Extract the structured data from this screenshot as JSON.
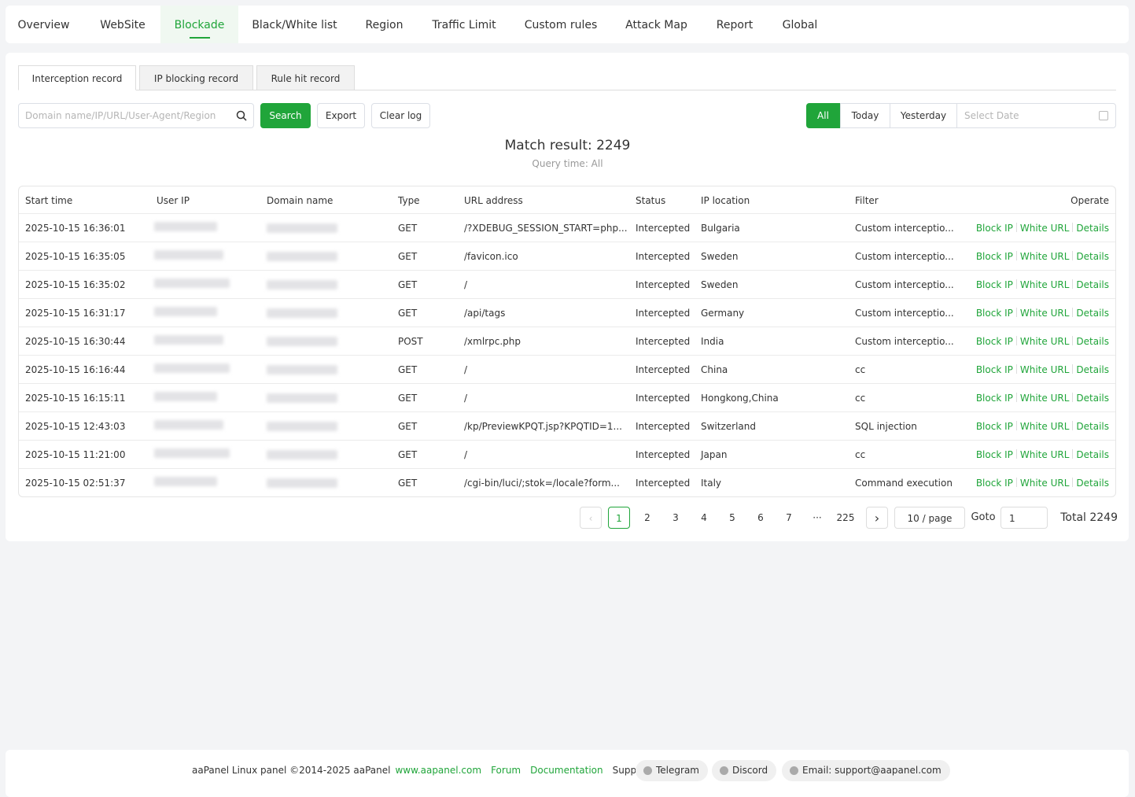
{
  "nav": [
    "Overview",
    "WebSite",
    "Blockade",
    "Black/White list",
    "Region",
    "Traffic Limit",
    "Custom rules",
    "Attack Map",
    "Report",
    "Global"
  ],
  "subtabs": [
    "Interception record",
    "IP blocking record",
    "Rule hit record"
  ],
  "search_placeholder": "Domain name/IP/URL/User-Agent/Region",
  "buttons": [
    "Search",
    "Export",
    "Clear log"
  ],
  "date_filters": [
    "All",
    "Today",
    "Yesterday"
  ],
  "date_placeholder": "Select Date",
  "match_result": "Match result: 2249",
  "query_time": "Query time: All",
  "table": {
    "columns": [
      "Start time",
      "User IP",
      "Domain name",
      "Type",
      "URL address",
      "Status",
      "IP location",
      "Filter",
      "Operate"
    ],
    "rows": [
      [
        "2025-10-15 16:36:01",
        "GET",
        "/?XDEBUG_SESSION_START=php...",
        "Intercepted",
        "Bulgaria",
        "Custom interceptio..."
      ],
      [
        "2025-10-15 16:35:05",
        "GET",
        "/favicon.ico",
        "Intercepted",
        "Sweden",
        "Custom interceptio..."
      ],
      [
        "2025-10-15 16:35:02",
        "GET",
        "/",
        "Intercepted",
        "Sweden",
        "Custom interceptio..."
      ],
      [
        "2025-10-15 16:31:17",
        "GET",
        "/api/tags",
        "Intercepted",
        "Germany",
        "Custom interceptio..."
      ],
      [
        "2025-10-15 16:30:44",
        "POST",
        "/xmlrpc.php",
        "Intercepted",
        "India",
        "Custom interceptio..."
      ],
      [
        "2025-10-15 16:16:44",
        "GET",
        "/",
        "Intercepted",
        "China",
        "cc"
      ],
      [
        "2025-10-15 16:15:11",
        "GET",
        "/",
        "Intercepted",
        "Hongkong,China",
        "cc"
      ],
      [
        "2025-10-15 12:43:03",
        "GET",
        "/kp/PreviewKPQT.jsp?KPQTID=1...",
        "Intercepted",
        "Switzerland",
        "SQL injection"
      ],
      [
        "2025-10-15 11:21:00",
        "GET",
        "/",
        "Intercepted",
        "Japan",
        "cc"
      ],
      [
        "2025-10-15 02:51:37",
        "GET",
        "/cgi-bin/luci/;stok=/locale?form...",
        "Intercepted",
        "Italy",
        "Command execution"
      ]
    ],
    "actions": [
      "Block IP",
      "White URL",
      "Details"
    ]
  },
  "pagination": {
    "pages": [
      1,
      2,
      3,
      4,
      5,
      6,
      7,
      "···",
      225
    ],
    "per_page": "10 / page",
    "goto": "Goto",
    "goto_value": 1,
    "total": "Total 2249"
  },
  "footer": {
    "copyright": "aaPanel Linux panel ©2014-2025 aaPanel",
    "links": [
      "www.aapanel.com",
      "Forum",
      "Documentation"
    ],
    "support": "Support:",
    "chips": [
      "Telegram",
      "Discord",
      "Email: support@aapanel.com"
    ]
  }
}
